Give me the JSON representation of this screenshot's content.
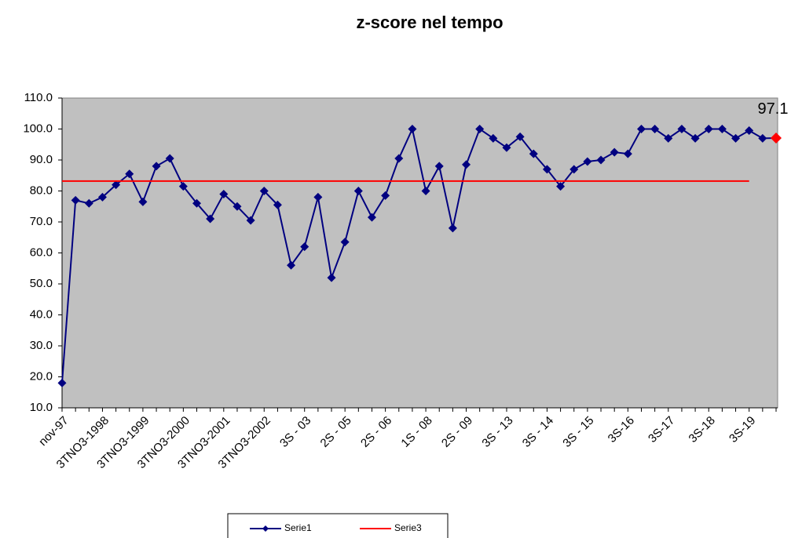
{
  "chart_data": {
    "type": "line",
    "title": "z-score  nel tempo",
    "categories": [
      "nov-97",
      null,
      null,
      "3TNO3-1998",
      null,
      null,
      "3TNO3-1999",
      null,
      null,
      "3TNO3-2000",
      null,
      null,
      "3TNO3-2001",
      null,
      null,
      "3TNO3-2002",
      null,
      null,
      "3S - 03",
      null,
      null,
      "2S - 05",
      null,
      null,
      "2S - 06",
      null,
      null,
      "1S - 08",
      null,
      null,
      "2S - 09",
      null,
      null,
      "3S - 13",
      null,
      null,
      "3S - 14",
      null,
      null,
      "3S - 15",
      null,
      null,
      "3S-16",
      null,
      null,
      "3S-17",
      null,
      null,
      "3S-18",
      null,
      null,
      "3S-19",
      null,
      null
    ],
    "series": [
      {
        "name": "Serie1",
        "color": "#000080",
        "highlight_color": "#ff0000",
        "values": [
          18,
          77,
          76,
          78,
          82,
          85.5,
          76.5,
          88,
          90.5,
          81.5,
          76,
          71,
          79,
          75,
          70.5,
          80,
          75.5,
          56,
          62,
          78,
          52,
          63.5,
          80,
          71.5,
          78.5,
          90.5,
          100,
          80,
          88,
          68,
          88.5,
          100,
          97,
          94,
          97.5,
          92,
          87,
          81.5,
          87,
          89.5,
          90,
          92.5,
          92,
          100,
          100,
          97,
          100,
          97,
          100,
          100,
          97,
          99.5,
          97,
          97.1
        ],
        "value_labels": [
          null,
          null,
          null,
          null,
          null,
          null,
          null,
          null,
          null,
          null,
          null,
          null,
          null,
          null,
          null,
          null,
          null,
          null,
          null,
          null,
          null,
          null,
          null,
          null,
          null,
          null,
          null,
          null,
          null,
          null,
          null,
          null,
          null,
          null,
          null,
          null,
          null,
          null,
          null,
          null,
          null,
          null,
          null,
          null,
          null,
          null,
          null,
          null,
          null,
          null,
          null,
          null,
          null,
          "97.1"
        ]
      },
      {
        "name": "Serie3",
        "color": "#ff0000",
        "markers": false,
        "values": [
          83.2,
          83.2,
          83.2,
          83.2,
          83.2,
          83.2,
          83.2,
          83.2,
          83.2,
          83.2,
          83.2,
          83.2,
          83.2,
          83.2,
          83.2,
          83.2,
          83.2,
          83.2,
          83.2,
          83.2,
          83.2,
          83.2,
          83.2,
          83.2,
          83.2,
          83.2,
          83.2,
          83.2,
          83.2,
          83.2,
          83.2,
          83.2,
          83.2,
          83.2,
          83.2,
          83.2,
          83.2,
          83.2,
          83.2,
          83.2,
          83.2,
          83.2,
          83.2,
          83.2,
          83.2,
          83.2,
          83.2,
          83.2,
          83.2,
          83.2,
          83.2,
          83.2,
          null,
          null
        ]
      }
    ],
    "ylim": [
      10,
      110
    ],
    "yticks": [
      {
        "value": 10,
        "label": "10.0"
      },
      {
        "value": 20,
        "label": "20.0"
      },
      {
        "value": 30,
        "label": "30.0"
      },
      {
        "value": 40,
        "label": "40.0"
      },
      {
        "value": 50,
        "label": "50.0"
      },
      {
        "value": 60,
        "label": "60.0"
      },
      {
        "value": 70,
        "label": "70.0"
      },
      {
        "value": 80,
        "label": "80.0"
      },
      {
        "value": 90,
        "label": "90.0"
      },
      {
        "value": 100,
        "label": "100.0"
      },
      {
        "value": 110,
        "label": "110.0"
      }
    ],
    "grid": false,
    "plot_background": "#c0c0c0",
    "legend": "bottom"
  }
}
